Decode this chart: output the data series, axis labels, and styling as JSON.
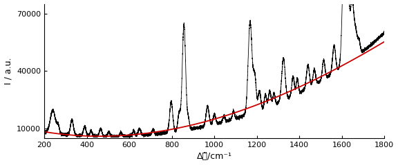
{
  "xlabel": "Δᵼ̃/cm⁻¹",
  "ylabel": "I / a.u.",
  "xlim": [
    200,
    1800
  ],
  "ylim": [
    5000,
    75000
  ],
  "yticks": [
    10000,
    40000,
    70000
  ],
  "xticks": [
    200,
    400,
    600,
    800,
    1000,
    1200,
    1400,
    1600,
    1800
  ],
  "spectrum_color": "#000000",
  "baseline_color": "#cc0000",
  "figsize": [
    5.76,
    2.4
  ],
  "dpi": 100
}
